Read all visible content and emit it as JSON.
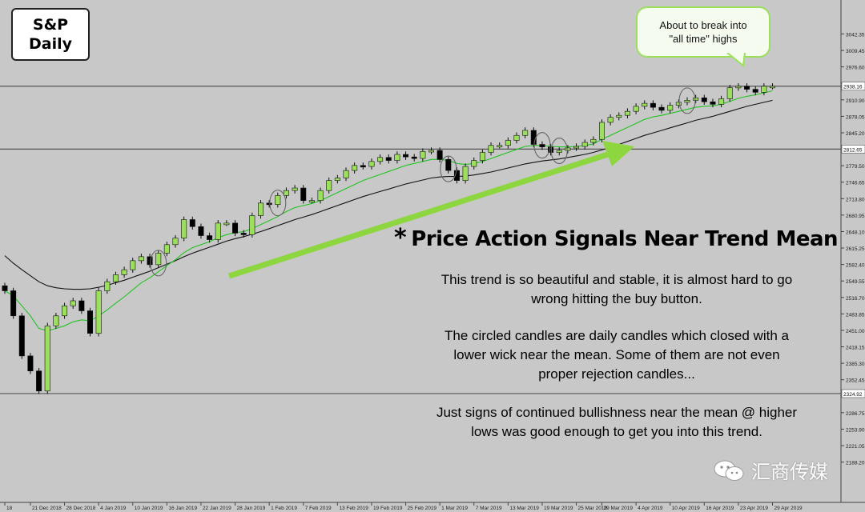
{
  "title": {
    "line1": "S&P",
    "line2": "Daily"
  },
  "bubble": {
    "line1": "About to break into",
    "line2": "\"all time\" highs"
  },
  "headline": {
    "star": "*",
    "text": "Price Action Signals Near Trend Mean"
  },
  "paragraph1": {
    "line1": "This trend is so beautiful and stable, it is almost hard to go",
    "line2": "wrong hitting the buy button."
  },
  "paragraph2": {
    "line1": "The circled candles are daily candles which closed with a",
    "line2": "lower wick near the mean. Some of them are not even",
    "line3": "proper rejection candles..."
  },
  "paragraph3": {
    "line1": "Just signs of continued bullishness near the mean @ higher",
    "line2": "lows was good enough to get you into this trend."
  },
  "watermark": {
    "text": "汇商传媒"
  },
  "colors": {
    "background": "#c8c8c8",
    "bull_candle": "#9be05a",
    "bear_candle": "#000000",
    "fast_ma": "#22c322",
    "slow_ma": "#111111",
    "arrow": "#8ed63f",
    "level_line": "#555555"
  },
  "chart_data": {
    "type": "candlestick",
    "title": "S&P Daily",
    "xlabel": "",
    "ylabel": "",
    "ylim": [
      2178,
      3075
    ],
    "grid": false,
    "y_ticks": [
      3042.35,
      3009.45,
      2976.6,
      2943.7,
      2910.9,
      2878.05,
      2845.2,
      2779.5,
      2746.65,
      2713.8,
      2680.95,
      2648.1,
      2615.25,
      2582.4,
      2549.55,
      2516.7,
      2483.85,
      2451.0,
      2418.15,
      2385.3,
      2352.45,
      2286.75,
      2253.9,
      2221.05,
      2188.2
    ],
    "price_labels": [
      "2938.16",
      "2812.65",
      "2324.92"
    ],
    "horizontal_levels": [
      2938.16,
      2812.65,
      2324.92
    ],
    "x_tick_labels": [
      "18",
      "21 Dec 2018",
      "28 Dec 2018",
      "4 Jan 2019",
      "10 Jan 2019",
      "16 Jan 2019",
      "22 Jan 2019",
      "28 Jan 2019",
      "1 Feb 2019",
      "7 Feb 2019",
      "13 Feb 2019",
      "19 Feb 2019",
      "25 Feb 2019",
      "1 Mar 2019",
      "7 Mar 2019",
      "13 Mar 2019",
      "19 Mar 2019",
      "25 Mar 2019",
      "29 Mar 2019",
      "4 Apr 2019",
      "10 Apr 2019",
      "16 Apr 2019",
      "23 Apr 2019",
      "29 Apr 2019"
    ],
    "x_tick_indices": [
      0,
      3,
      7,
      11,
      15,
      19,
      23,
      27,
      31,
      35,
      39,
      43,
      47,
      51,
      55,
      59,
      63,
      67,
      70,
      74,
      78,
      82,
      86,
      90
    ],
    "closes": [
      2530,
      2480,
      2400,
      2370,
      2330,
      2460,
      2480,
      2500,
      2510,
      2490,
      2445,
      2530,
      2548,
      2562,
      2572,
      2590,
      2598,
      2582,
      2605,
      2622,
      2635,
      2672,
      2658,
      2640,
      2632,
      2665,
      2665,
      2645,
      2642,
      2680,
      2705,
      2702,
      2720,
      2730,
      2735,
      2710,
      2710,
      2730,
      2750,
      2755,
      2770,
      2780,
      2778,
      2788,
      2796,
      2790,
      2802,
      2797,
      2794,
      2808,
      2810,
      2792,
      2770,
      2750,
      2778,
      2790,
      2806,
      2820,
      2820,
      2830,
      2840,
      2850,
      2822,
      2817,
      2806,
      2810,
      2815,
      2818,
      2826,
      2832,
      2866,
      2876,
      2880,
      2888,
      2898,
      2904,
      2896,
      2890,
      2900,
      2906,
      2910,
      2915,
      2907,
      2902,
      2913,
      2935,
      2938,
      2932,
      2926,
      2938,
      2938
    ],
    "fast_ma": [
      2530,
      2520,
      2500,
      2480,
      2455,
      2450,
      2455,
      2460,
      2468,
      2472,
      2470,
      2480,
      2492,
      2505,
      2518,
      2532,
      2546,
      2556,
      2568,
      2580,
      2592,
      2606,
      2616,
      2622,
      2628,
      2636,
      2642,
      2646,
      2648,
      2654,
      2662,
      2670,
      2678,
      2688,
      2696,
      2700,
      2704,
      2710,
      2718,
      2726,
      2734,
      2742,
      2750,
      2756,
      2762,
      2768,
      2774,
      2780,
      2784,
      2788,
      2792,
      2792,
      2790,
      2784,
      2782,
      2784,
      2788,
      2794,
      2800,
      2806,
      2812,
      2818,
      2820,
      2820,
      2818,
      2817,
      2817,
      2818,
      2820,
      2823,
      2832,
      2840,
      2848,
      2856,
      2864,
      2872,
      2877,
      2880,
      2884,
      2888,
      2892,
      2896,
      2898,
      2899,
      2902,
      2908,
      2914,
      2918,
      2921,
      2925,
      2929
    ],
    "slow_ma": [
      2600,
      2585,
      2572,
      2560,
      2548,
      2540,
      2536,
      2534,
      2533,
      2533,
      2534,
      2537,
      2541,
      2546,
      2551,
      2557,
      2563,
      2569,
      2576,
      2583,
      2590,
      2598,
      2605,
      2611,
      2617,
      2623,
      2629,
      2634,
      2638,
      2643,
      2648,
      2654,
      2660,
      2666,
      2672,
      2677,
      2682,
      2688,
      2694,
      2700,
      2706,
      2712,
      2718,
      2723,
      2728,
      2733,
      2738,
      2743,
      2747,
      2751,
      2755,
      2757,
      2758,
      2758,
      2759,
      2761,
      2764,
      2767,
      2771,
      2775,
      2779,
      2783,
      2786,
      2789,
      2791,
      2793,
      2796,
      2799,
      2802,
      2806,
      2811,
      2816,
      2822,
      2828,
      2834,
      2840,
      2845,
      2850,
      2855,
      2860,
      2865,
      2870,
      2874,
      2878,
      2883,
      2888,
      2893,
      2898,
      2902,
      2906,
      2910
    ],
    "circled_candle_indices": [
      18,
      32,
      52,
      63,
      65,
      80
    ]
  }
}
